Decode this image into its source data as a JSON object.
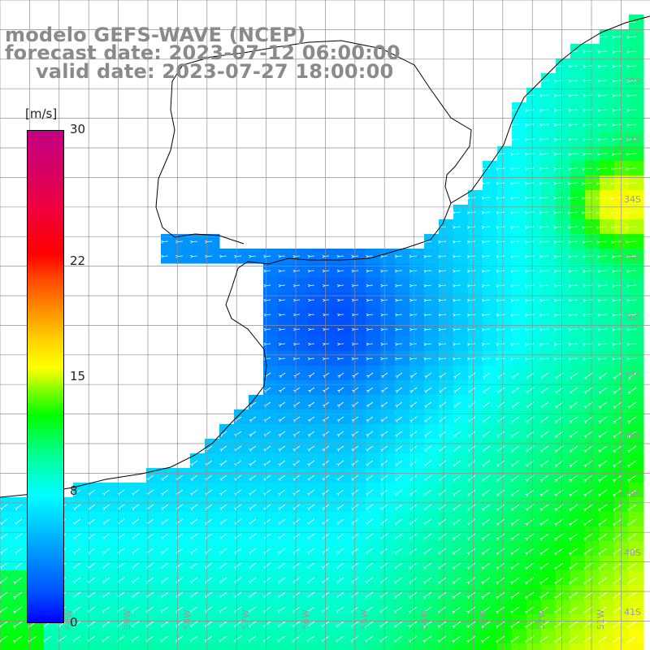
{
  "title": {
    "line1": "modelo GEFS-WAVE (NCEP)",
    "line2": "forecast date: 2023-07-12 06:00:00",
    "line3": "valid date: 2023-07-27 18:00:00"
  },
  "colorbar": {
    "units": "[m/s]",
    "min": 0,
    "max": 30,
    "tick_labels": [
      "30",
      "22",
      "15",
      "8",
      "0"
    ],
    "tick_values": [
      30,
      22,
      15,
      8,
      0
    ]
  },
  "map": {
    "variable": "wind speed with direction arrows",
    "lat_labels": [
      "32S",
      "33S",
      "34S",
      "35S",
      "36S",
      "37S",
      "38S",
      "39S",
      "40S",
      "41S"
    ],
    "lon_labels": [
      "60W",
      "59W",
      "58W",
      "57W",
      "56W",
      "55W",
      "54W",
      "53W",
      "52W",
      "51W"
    ],
    "colors": {
      "land": "#ffffff",
      "coastline": "#000000",
      "grid": "#8f8f8f",
      "title_text": "#8a8a8a",
      "arrow": "#ffffff",
      "label_text": "#9a9a9a"
    }
  }
}
